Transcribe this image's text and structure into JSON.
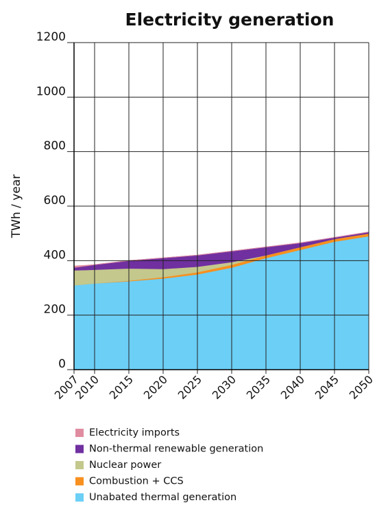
{
  "chart_data": {
    "type": "stacked_area",
    "title": "Electricity generation",
    "y_label": "TWh / year",
    "x": [
      2007,
      2010,
      2015,
      2020,
      2025,
      2030,
      2035,
      2040,
      2045,
      2050
    ],
    "xlim": [
      2007,
      2050
    ],
    "xticks": [
      2007,
      2010,
      2015,
      2020,
      2025,
      2030,
      2035,
      2040,
      2045,
      2050
    ],
    "ylim": [
      0,
      1200
    ],
    "yticks": [
      0,
      200,
      400,
      600,
      800,
      1000,
      1200
    ],
    "grid": true,
    "series": [
      {
        "name": "Unabated thermal generation",
        "color": "#6ccff6",
        "values": [
          310,
          317,
          325,
          335,
          350,
          375,
          410,
          440,
          470,
          490
        ]
      },
      {
        "name": "Combustion + CCS",
        "color": "#f7901e",
        "values": [
          0,
          0,
          2,
          5,
          8,
          10,
          10,
          10,
          10,
          10
        ]
      },
      {
        "name": "Nuclear power",
        "color": "#c4c88c",
        "values": [
          55,
          50,
          45,
          30,
          20,
          10,
          0,
          0,
          0,
          0
        ]
      },
      {
        "name": "Non-thermal renewable generation",
        "color": "#7030a0",
        "values": [
          10,
          18,
          28,
          40,
          42,
          40,
          30,
          15,
          5,
          5
        ]
      },
      {
        "name": "Electricity imports",
        "color": "#e08ca0",
        "values": [
          5,
          0,
          0,
          0,
          0,
          0,
          0,
          0,
          0,
          0
        ]
      }
    ]
  }
}
